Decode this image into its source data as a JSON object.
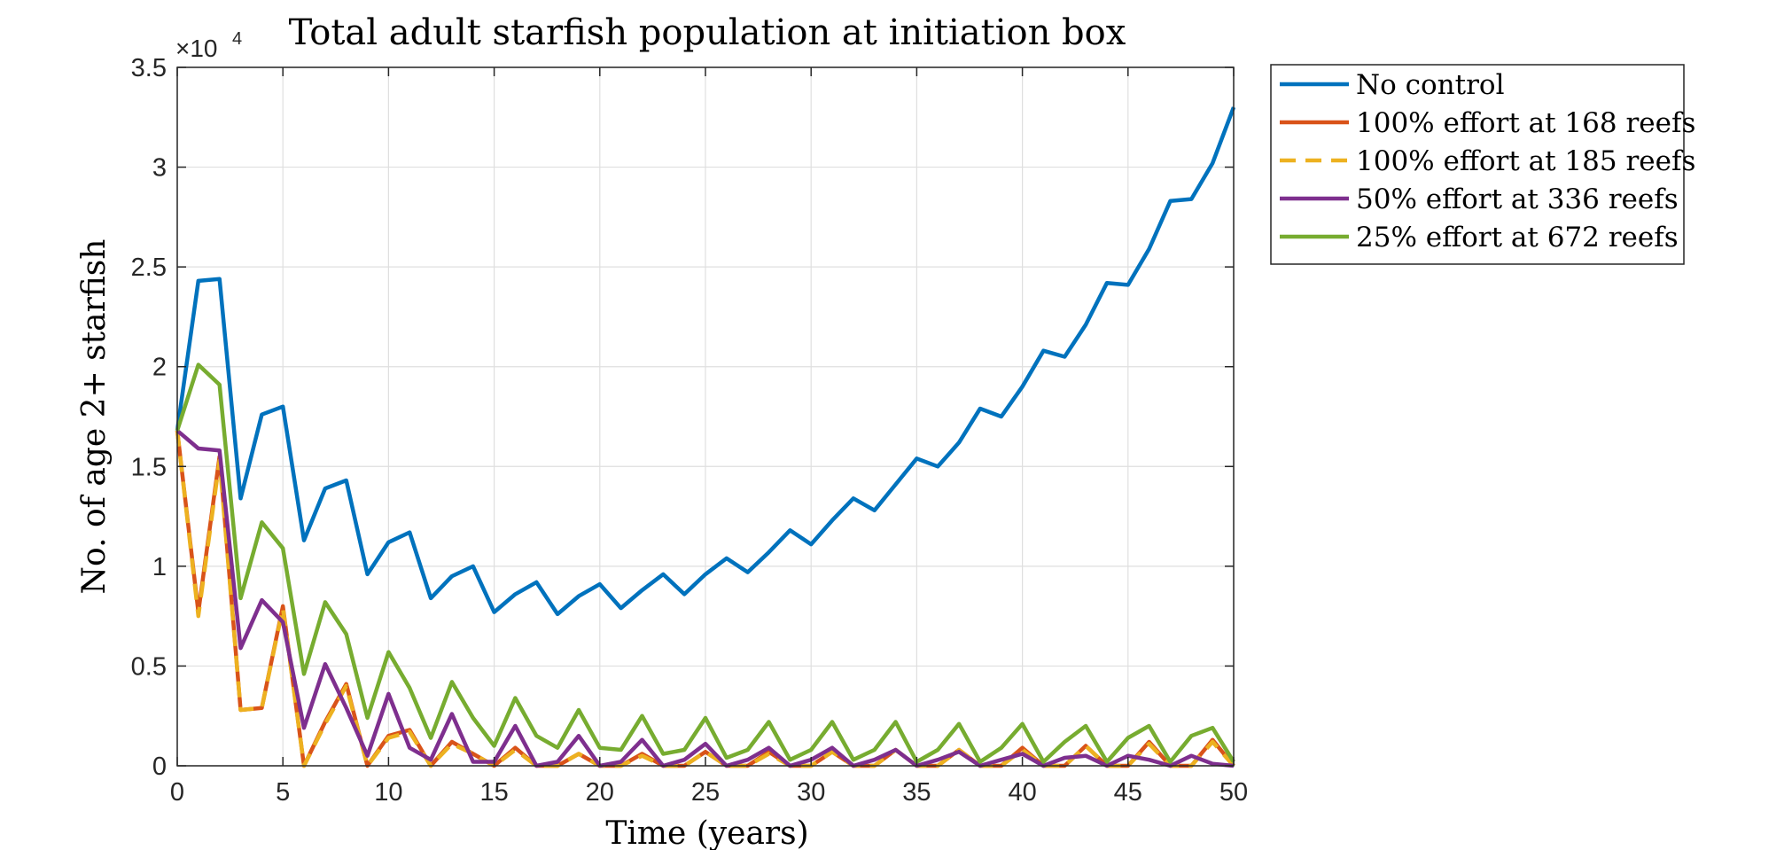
{
  "chart_data": {
    "type": "line",
    "title": "Total adult starfish population at initiation box",
    "xlabel": "Time (years)",
    "ylabel": "No. of age 2+ starfish",
    "y_exponent_label": "×10",
    "y_exponent_power": "4",
    "xlim": [
      0,
      50
    ],
    "ylim": [
      0,
      35000
    ],
    "grid": true,
    "legend_position": "outside-top-right",
    "x_ticks": [
      0,
      5,
      10,
      15,
      20,
      25,
      30,
      35,
      40,
      45,
      50
    ],
    "x_tick_labels": [
      "0",
      "5",
      "10",
      "15",
      "20",
      "25",
      "30",
      "35",
      "40",
      "45",
      "50"
    ],
    "y_ticks": [
      0,
      5000,
      10000,
      15000,
      20000,
      25000,
      30000,
      35000
    ],
    "y_tick_labels": [
      "0",
      "0.5",
      "1",
      "1.5",
      "2",
      "2.5",
      "3",
      "3.5"
    ],
    "x": [
      0,
      1,
      2,
      3,
      4,
      5,
      6,
      7,
      8,
      9,
      10,
      11,
      12,
      13,
      14,
      15,
      16,
      17,
      18,
      19,
      20,
      21,
      22,
      23,
      24,
      25,
      26,
      27,
      28,
      29,
      30,
      31,
      32,
      33,
      34,
      35,
      36,
      37,
      38,
      39,
      40,
      41,
      42,
      43,
      44,
      45,
      46,
      47,
      48,
      49,
      50
    ],
    "series": [
      {
        "name": "No control",
        "color": "#0072BD",
        "dash": "solid",
        "values": [
          16800,
          24300,
          24400,
          13400,
          17600,
          18000,
          11300,
          13900,
          14300,
          9600,
          11200,
          11700,
          8400,
          9500,
          10000,
          7700,
          8600,
          9200,
          7600,
          8500,
          9100,
          7900,
          8800,
          9600,
          8600,
          9600,
          10400,
          9700,
          10700,
          11800,
          11100,
          12300,
          13400,
          12800,
          14100,
          15400,
          15000,
          16200,
          17900,
          17500,
          19000,
          20800,
          20500,
          22100,
          24200,
          24100,
          25900,
          28300,
          28400,
          30200,
          33000
        ]
      },
      {
        "name": "100% effort at 168 reefs",
        "color": "#D95319",
        "dash": "solid",
        "values": [
          16800,
          7700,
          15500,
          2800,
          2900,
          8000,
          0,
          2200,
          4100,
          0,
          1500,
          1800,
          0,
          1200,
          600,
          0,
          900,
          0,
          0,
          600,
          0,
          0,
          600,
          0,
          0,
          700,
          0,
          0,
          700,
          0,
          0,
          700,
          0,
          0,
          800,
          0,
          0,
          800,
          0,
          0,
          900,
          0,
          0,
          1000,
          0,
          0,
          1200,
          0,
          0,
          1300,
          0
        ]
      },
      {
        "name": "100% effort at 185 reefs",
        "color": "#EDB120",
        "dash": "dashed",
        "values": [
          16800,
          7500,
          15300,
          2800,
          2900,
          7900,
          0,
          2100,
          4000,
          0,
          1400,
          1700,
          0,
          1100,
          600,
          0,
          800,
          0,
          0,
          600,
          0,
          0,
          500,
          0,
          0,
          700,
          0,
          0,
          600,
          0,
          0,
          700,
          0,
          0,
          800,
          0,
          0,
          800,
          0,
          0,
          800,
          0,
          0,
          1000,
          0,
          0,
          1100,
          0,
          0,
          1200,
          0
        ]
      },
      {
        "name": "50% effort at 336 reefs",
        "color": "#7E2F8E",
        "dash": "solid",
        "values": [
          16800,
          15900,
          15800,
          5900,
          8300,
          7200,
          1900,
          5100,
          2900,
          500,
          3600,
          900,
          300,
          2600,
          200,
          200,
          2000,
          0,
          200,
          1500,
          0,
          200,
          1300,
          0,
          300,
          1100,
          0,
          300,
          900,
          0,
          300,
          900,
          0,
          300,
          800,
          0,
          300,
          700,
          0,
          300,
          600,
          0,
          400,
          500,
          0,
          500,
          300,
          0,
          500,
          100,
          0
        ]
      },
      {
        "name": "25% effort at 672 reefs",
        "color": "#77AC30",
        "dash": "solid",
        "values": [
          16800,
          20100,
          19100,
          8400,
          12200,
          10900,
          4600,
          8200,
          6600,
          2400,
          5700,
          3900,
          1400,
          4200,
          2400,
          1000,
          3400,
          1500,
          900,
          2800,
          900,
          800,
          2500,
          600,
          800,
          2400,
          400,
          800,
          2200,
          300,
          800,
          2200,
          300,
          800,
          2200,
          200,
          800,
          2100,
          200,
          900,
          2100,
          200,
          1200,
          2000,
          200,
          1400,
          2000,
          200,
          1500,
          1900,
          200
        ]
      }
    ]
  }
}
